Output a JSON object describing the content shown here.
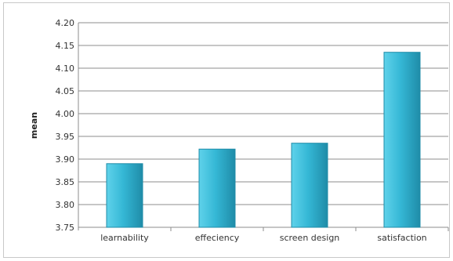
{
  "chart_data": {
    "type": "bar",
    "title": "",
    "xlabel": "",
    "ylabel": "mean",
    "categories": [
      "learnability",
      "effeciency",
      "screen design",
      "satisfaction"
    ],
    "values": [
      3.89,
      3.922,
      3.935,
      4.135
    ],
    "ylim": [
      3.75,
      4.2
    ],
    "yticks": [
      "3.75",
      "3.80",
      "3.85",
      "3.90",
      "3.95",
      "4.00",
      "4.05",
      "4.10",
      "4.15",
      "4.20"
    ],
    "grid": true,
    "legend": "none",
    "colors": {
      "bar_light": "#5fd2ea",
      "bar_mid": "#35b8d6",
      "bar_dark": "#1f8ca8",
      "grid": "#8c8c8c"
    }
  }
}
